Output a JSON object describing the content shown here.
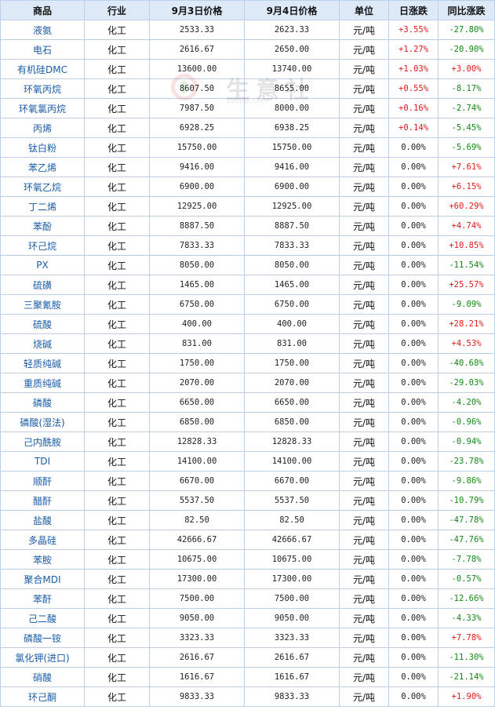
{
  "table": {
    "headers": [
      "商品",
      "行业",
      "9月3日价格",
      "9月4日价格",
      "单位",
      "日涨跌",
      "同比涨跌"
    ],
    "rows": [
      {
        "name": "液氨",
        "industry": "化工",
        "p1": "2533.33",
        "p2": "2623.33",
        "unit": "元/吨",
        "day": "+3.55%",
        "yoy": "-27.80%"
      },
      {
        "name": "电石",
        "industry": "化工",
        "p1": "2616.67",
        "p2": "2650.00",
        "unit": "元/吨",
        "day": "+1.27%",
        "yoy": "-20.90%"
      },
      {
        "name": "有机硅DMC",
        "industry": "化工",
        "p1": "13600.00",
        "p2": "13740.00",
        "unit": "元/吨",
        "day": "+1.03%",
        "yoy": "+3.00%"
      },
      {
        "name": "环氧丙烷",
        "industry": "化工",
        "p1": "8607.50",
        "p2": "8655.00",
        "unit": "元/吨",
        "day": "+0.55%",
        "yoy": "-8.17%"
      },
      {
        "name": "环氧氯丙烷",
        "industry": "化工",
        "p1": "7987.50",
        "p2": "8000.00",
        "unit": "元/吨",
        "day": "+0.16%",
        "yoy": "-2.74%"
      },
      {
        "name": "丙烯",
        "industry": "化工",
        "p1": "6928.25",
        "p2": "6938.25",
        "unit": "元/吨",
        "day": "+0.14%",
        "yoy": "-5.45%"
      },
      {
        "name": "钛白粉",
        "industry": "化工",
        "p1": "15750.00",
        "p2": "15750.00",
        "unit": "元/吨",
        "day": "0.00%",
        "yoy": "-5.69%"
      },
      {
        "name": "苯乙烯",
        "industry": "化工",
        "p1": "9416.00",
        "p2": "9416.00",
        "unit": "元/吨",
        "day": "0.00%",
        "yoy": "+7.61%"
      },
      {
        "name": "环氧乙烷",
        "industry": "化工",
        "p1": "6900.00",
        "p2": "6900.00",
        "unit": "元/吨",
        "day": "0.00%",
        "yoy": "+6.15%"
      },
      {
        "name": "丁二烯",
        "industry": "化工",
        "p1": "12925.00",
        "p2": "12925.00",
        "unit": "元/吨",
        "day": "0.00%",
        "yoy": "+60.29%"
      },
      {
        "name": "苯酚",
        "industry": "化工",
        "p1": "8887.50",
        "p2": "8887.50",
        "unit": "元/吨",
        "day": "0.00%",
        "yoy": "+4.74%"
      },
      {
        "name": "环己烷",
        "industry": "化工",
        "p1": "7833.33",
        "p2": "7833.33",
        "unit": "元/吨",
        "day": "0.00%",
        "yoy": "+10.85%"
      },
      {
        "name": "PX",
        "industry": "化工",
        "p1": "8050.00",
        "p2": "8050.00",
        "unit": "元/吨",
        "day": "0.00%",
        "yoy": "-11.54%"
      },
      {
        "name": "硫磺",
        "industry": "化工",
        "p1": "1465.00",
        "p2": "1465.00",
        "unit": "元/吨",
        "day": "0.00%",
        "yoy": "+25.57%"
      },
      {
        "name": "三聚氰胺",
        "industry": "化工",
        "p1": "6750.00",
        "p2": "6750.00",
        "unit": "元/吨",
        "day": "0.00%",
        "yoy": "-9.09%"
      },
      {
        "name": "硫酸",
        "industry": "化工",
        "p1": "400.00",
        "p2": "400.00",
        "unit": "元/吨",
        "day": "0.00%",
        "yoy": "+28.21%"
      },
      {
        "name": "烧碱",
        "industry": "化工",
        "p1": "831.00",
        "p2": "831.00",
        "unit": "元/吨",
        "day": "0.00%",
        "yoy": "+4.53%"
      },
      {
        "name": "轻质纯碱",
        "industry": "化工",
        "p1": "1750.00",
        "p2": "1750.00",
        "unit": "元/吨",
        "day": "0.00%",
        "yoy": "-40.68%"
      },
      {
        "name": "重质纯碱",
        "industry": "化工",
        "p1": "2070.00",
        "p2": "2070.00",
        "unit": "元/吨",
        "day": "0.00%",
        "yoy": "-29.03%"
      },
      {
        "name": "磷酸",
        "industry": "化工",
        "p1": "6650.00",
        "p2": "6650.00",
        "unit": "元/吨",
        "day": "0.00%",
        "yoy": "-4.20%"
      },
      {
        "name": "磷酸(湿法)",
        "industry": "化工",
        "p1": "6850.00",
        "p2": "6850.00",
        "unit": "元/吨",
        "day": "0.00%",
        "yoy": "-0.96%"
      },
      {
        "name": "己内酰胺",
        "industry": "化工",
        "p1": "12828.33",
        "p2": "12828.33",
        "unit": "元/吨",
        "day": "0.00%",
        "yoy": "-0.94%"
      },
      {
        "name": "TDI",
        "industry": "化工",
        "p1": "14100.00",
        "p2": "14100.00",
        "unit": "元/吨",
        "day": "0.00%",
        "yoy": "-23.78%"
      },
      {
        "name": "顺酐",
        "industry": "化工",
        "p1": "6670.00",
        "p2": "6670.00",
        "unit": "元/吨",
        "day": "0.00%",
        "yoy": "-9.86%"
      },
      {
        "name": "醋酐",
        "industry": "化工",
        "p1": "5537.50",
        "p2": "5537.50",
        "unit": "元/吨",
        "day": "0.00%",
        "yoy": "-10.79%"
      },
      {
        "name": "盐酸",
        "industry": "化工",
        "p1": "82.50",
        "p2": "82.50",
        "unit": "元/吨",
        "day": "0.00%",
        "yoy": "-47.78%"
      },
      {
        "name": "多晶硅",
        "industry": "化工",
        "p1": "42666.67",
        "p2": "42666.67",
        "unit": "元/吨",
        "day": "0.00%",
        "yoy": "-47.76%"
      },
      {
        "name": "苯胺",
        "industry": "化工",
        "p1": "10675.00",
        "p2": "10675.00",
        "unit": "元/吨",
        "day": "0.00%",
        "yoy": "-7.78%"
      },
      {
        "name": "聚合MDI",
        "industry": "化工",
        "p1": "17300.00",
        "p2": "17300.00",
        "unit": "元/吨",
        "day": "0.00%",
        "yoy": "-0.57%"
      },
      {
        "name": "苯酐",
        "industry": "化工",
        "p1": "7500.00",
        "p2": "7500.00",
        "unit": "元/吨",
        "day": "0.00%",
        "yoy": "-12.66%"
      },
      {
        "name": "己二酸",
        "industry": "化工",
        "p1": "9050.00",
        "p2": "9050.00",
        "unit": "元/吨",
        "day": "0.00%",
        "yoy": "-4.33%"
      },
      {
        "name": "磷酸一铵",
        "industry": "化工",
        "p1": "3323.33",
        "p2": "3323.33",
        "unit": "元/吨",
        "day": "0.00%",
        "yoy": "+7.78%"
      },
      {
        "name": "氯化钾(进口)",
        "industry": "化工",
        "p1": "2616.67",
        "p2": "2616.67",
        "unit": "元/吨",
        "day": "0.00%",
        "yoy": "-11.30%"
      },
      {
        "name": "硝酸",
        "industry": "化工",
        "p1": "1616.67",
        "p2": "1616.67",
        "unit": "元/吨",
        "day": "0.00%",
        "yoy": "-21.14%"
      },
      {
        "name": "环己酮",
        "industry": "化工",
        "p1": "9833.33",
        "p2": "9833.33",
        "unit": "元/吨",
        "day": "0.00%",
        "yoy": "+1.90%"
      }
    ]
  },
  "watermark": {
    "text": "生意社",
    "subtext": "100ppi.com"
  },
  "colors": {
    "header_bg": "#dde9f7",
    "border": "#bcd0e8",
    "name_link": "#1a5ca8",
    "up": "#e01a1a",
    "down": "#128a12"
  }
}
